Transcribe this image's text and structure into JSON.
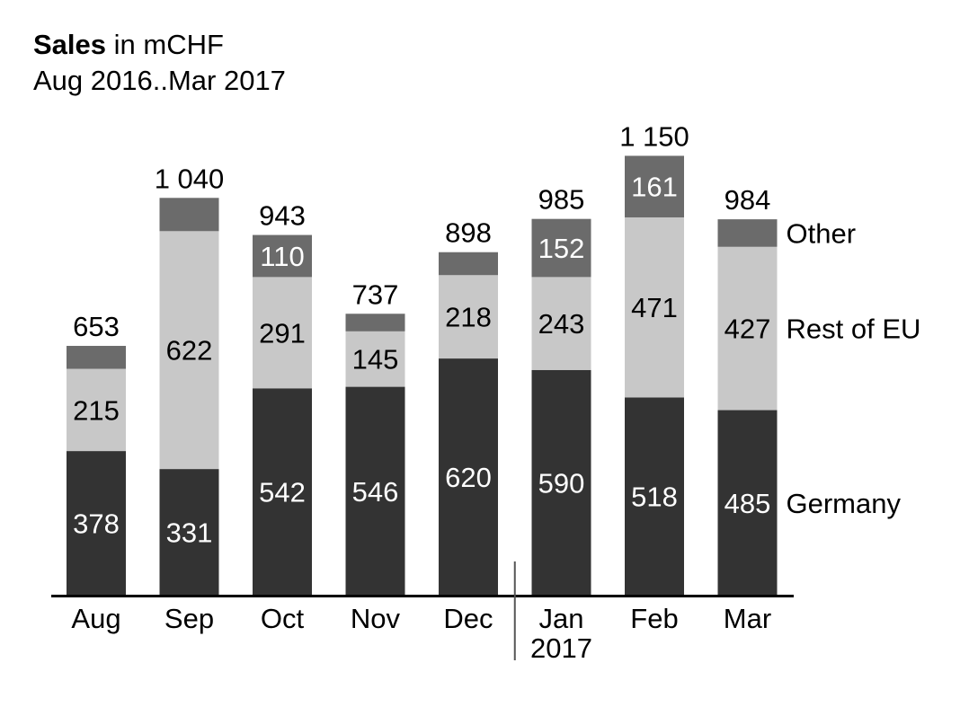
{
  "title": {
    "bold": "Sales",
    "rest": " in mCHF",
    "subtitle": "Aug 2016..Mar 2017"
  },
  "colors": {
    "Germany": "#333333",
    "Rest of EU": "#c8c8c8",
    "Other": "#6b6b6b",
    "axis": "#000000",
    "separator": "#555555"
  },
  "chart_data": {
    "type": "bar",
    "stacked": true,
    "categories": [
      "Aug",
      "Sep",
      "Oct",
      "Nov",
      "Dec",
      "Jan",
      "Feb",
      "Mar"
    ],
    "year_label": {
      "category": "Jan",
      "text": "2017"
    },
    "series": [
      {
        "name": "Germany",
        "values": [
          378,
          331,
          542,
          546,
          620,
          590,
          518,
          485
        ],
        "labels": [
          "378",
          "331",
          "542",
          "546",
          "620",
          "590",
          "518",
          "485"
        ]
      },
      {
        "name": "Rest of EU",
        "values": [
          215,
          622,
          291,
          145,
          218,
          243,
          471,
          427
        ],
        "labels": [
          "215",
          "622",
          "291",
          "145",
          "218",
          "243",
          "471",
          "427"
        ]
      },
      {
        "name": "Other",
        "values": [
          60,
          87,
          110,
          46,
          60,
          152,
          161,
          72
        ],
        "labels": [
          "",
          "",
          "110",
          "",
          "",
          "152",
          "161",
          ""
        ]
      }
    ],
    "totals": [
      "653",
      "1 040",
      "943",
      "737",
      "898",
      "985",
      "1 150",
      "984"
    ],
    "ylim": [
      0,
      1150
    ]
  }
}
